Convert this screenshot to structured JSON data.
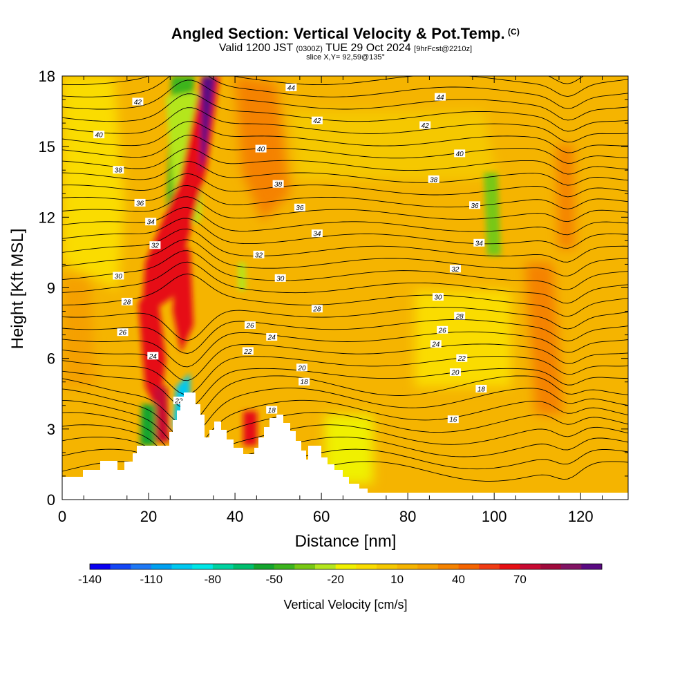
{
  "titles": {
    "main": "Angled Section: Vertical Velocity & Pot.Temp.",
    "copyright": "(C)",
    "valid_prefix": "Valid 1200 JST",
    "valid_utc": "(0300Z)",
    "valid_date": "TUE 29 Oct 2024",
    "forecast": "[9hrFcst@2210z]",
    "slice": "slice X,Y= 92,59@135°"
  },
  "chart_data": {
    "type": "heatmap",
    "xlabel": "Distance [nm]",
    "ylabel": "Height [Kft MSL]",
    "xlim": [
      0,
      131
    ],
    "ylim": [
      0,
      18
    ],
    "x_ticks": [
      "0",
      "20",
      "40",
      "60",
      "80",
      "100",
      "120"
    ],
    "y_ticks": [
      "0",
      "3",
      "6",
      "9",
      "12",
      "15",
      "18"
    ],
    "colorbar": {
      "title": "Vertical Velocity [cm/s]",
      "tick_labels": [
        "-140",
        "-110",
        "-80",
        "-50",
        "-20",
        "10",
        "40",
        "70"
      ],
      "colors": [
        "#0a00f0",
        "#1446f5",
        "#1e78f5",
        "#00a0f0",
        "#00c8f0",
        "#00e6e6",
        "#00d2a0",
        "#00be6e",
        "#14a52d",
        "#3cb41e",
        "#78c814",
        "#b4e61e",
        "#f0f000",
        "#fadc00",
        "#f5c800",
        "#f5b400",
        "#f5a000",
        "#f58200",
        "#f56400",
        "#f03c14",
        "#e60f14",
        "#c80a32",
        "#a00a3c",
        "#821464",
        "#5a0a82"
      ]
    },
    "theta_contours": {
      "unit": "K",
      "labels": [
        {
          "text": "44",
          "x": 53,
          "y": 17.5
        },
        {
          "text": "44",
          "x": 87.5,
          "y": 17.1
        },
        {
          "text": "42",
          "x": 17.5,
          "y": 16.9
        },
        {
          "text": "42",
          "x": 59,
          "y": 16.1
        },
        {
          "text": "42",
          "x": 84,
          "y": 15.9
        },
        {
          "text": "40",
          "x": 8.5,
          "y": 15.5
        },
        {
          "text": "40",
          "x": 46,
          "y": 14.9
        },
        {
          "text": "40",
          "x": 92,
          "y": 14.7
        },
        {
          "text": "38",
          "x": 13,
          "y": 14.0
        },
        {
          "text": "38",
          "x": 50,
          "y": 13.4
        },
        {
          "text": "38",
          "x": 86,
          "y": 13.6
        },
        {
          "text": "36",
          "x": 18,
          "y": 12.6
        },
        {
          "text": "36",
          "x": 55,
          "y": 12.4
        },
        {
          "text": "36",
          "x": 95.5,
          "y": 12.5
        },
        {
          "text": "34",
          "x": 20.5,
          "y": 11.8
        },
        {
          "text": "34",
          "x": 59,
          "y": 11.3
        },
        {
          "text": "34",
          "x": 96.5,
          "y": 10.9
        },
        {
          "text": "32",
          "x": 21.5,
          "y": 10.8
        },
        {
          "text": "32",
          "x": 45.5,
          "y": 10.4
        },
        {
          "text": "32",
          "x": 91,
          "y": 9.8
        },
        {
          "text": "30",
          "x": 13,
          "y": 9.5
        },
        {
          "text": "30",
          "x": 50.5,
          "y": 9.4
        },
        {
          "text": "30",
          "x": 87,
          "y": 8.6
        },
        {
          "text": "28",
          "x": 15,
          "y": 8.4
        },
        {
          "text": "28",
          "x": 59,
          "y": 8.1
        },
        {
          "text": "28",
          "x": 92,
          "y": 7.8
        },
        {
          "text": "26",
          "x": 14,
          "y": 7.1
        },
        {
          "text": "26",
          "x": 43.5,
          "y": 7.4
        },
        {
          "text": "26",
          "x": 88,
          "y": 7.2
        },
        {
          "text": "24",
          "x": 21,
          "y": 6.1
        },
        {
          "text": "24",
          "x": 48.5,
          "y": 6.9
        },
        {
          "text": "24",
          "x": 86.5,
          "y": 6.6
        },
        {
          "text": "22",
          "x": 43,
          "y": 6.3
        },
        {
          "text": "22",
          "x": 92.5,
          "y": 6.0
        },
        {
          "text": "22",
          "x": 27,
          "y": 4.2
        },
        {
          "text": "20",
          "x": 55.5,
          "y": 5.6
        },
        {
          "text": "20",
          "x": 91,
          "y": 5.4
        },
        {
          "text": "18",
          "x": 56,
          "y": 5.0
        },
        {
          "text": "18",
          "x": 97,
          "y": 4.7
        },
        {
          "text": "18",
          "x": 48.5,
          "y": 3.8
        },
        {
          "text": "16",
          "x": 90.5,
          "y": 3.4
        }
      ]
    }
  }
}
